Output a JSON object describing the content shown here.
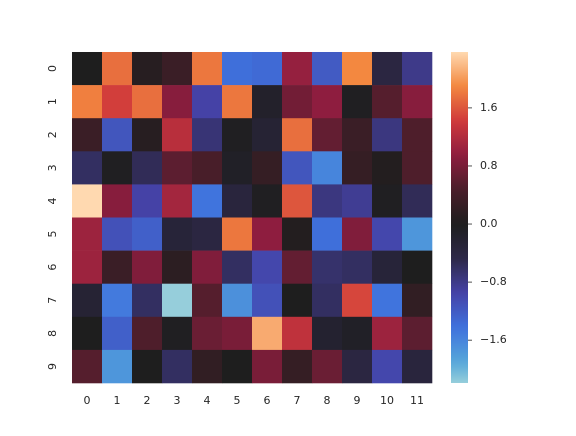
{
  "chart_data": {
    "type": "heatmap",
    "x_categories": [
      "0",
      "1",
      "2",
      "3",
      "4",
      "5",
      "6",
      "7",
      "8",
      "9",
      "10",
      "11"
    ],
    "y_categories": [
      "0",
      "1",
      "2",
      "3",
      "4",
      "5",
      "6",
      "7",
      "8",
      "9"
    ],
    "values": [
      [
        0.0,
        1.75,
        0.1,
        0.3,
        1.8,
        -1.4,
        -1.35,
        1.0,
        -1.2,
        1.9,
        -0.4,
        -0.8
      ],
      [
        1.85,
        1.45,
        1.75,
        0.9,
        -0.95,
        1.8,
        -0.15,
        0.75,
        0.95,
        -0.05,
        0.55,
        0.9
      ],
      [
        0.3,
        -1.15,
        0.1,
        1.25,
        -0.7,
        -0.05,
        -0.25,
        1.75,
        0.65,
        0.3,
        -0.75,
        0.5
      ],
      [
        -0.6,
        -0.05,
        -0.55,
        0.6,
        0.45,
        -0.1,
        0.25,
        -1.15,
        -1.6,
        0.25,
        0.05,
        0.5
      ],
      [
        2.37,
        0.9,
        -0.95,
        1.1,
        -1.45,
        -0.35,
        -0.05,
        1.6,
        -0.75,
        -0.85,
        -0.05,
        -0.55
      ],
      [
        1.05,
        -1.1,
        -1.25,
        -0.3,
        -0.4,
        1.8,
        0.95,
        0.05,
        -1.4,
        0.85,
        -1.0,
        -1.75
      ],
      [
        1.05,
        0.3,
        0.85,
        0.15,
        0.85,
        -0.6,
        -1.0,
        0.65,
        -0.65,
        -0.6,
        -0.3,
        0.0
      ],
      [
        -0.25,
        -1.5,
        -0.6,
        -2.19,
        0.55,
        -1.7,
        -1.1,
        0.0,
        -0.6,
        1.5,
        -1.45,
        0.2
      ],
      [
        0.0,
        -1.25,
        0.5,
        -0.05,
        0.7,
        0.8,
        2.1,
        1.3,
        -0.2,
        -0.1,
        1.05,
        0.6
      ],
      [
        0.55,
        -1.75,
        0.0,
        -0.6,
        0.2,
        0.0,
        0.8,
        0.25,
        0.7,
        -0.4,
        -1.0,
        -0.35
      ]
    ],
    "center": 0,
    "clim": [
      -2.19,
      2.37
    ],
    "cticks": [
      {
        "value": -1.6,
        "label": "−1.6"
      },
      {
        "value": -0.8,
        "label": "−0.8"
      },
      {
        "value": 0,
        "label": "0.0"
      },
      0.8,
      1.6
    ],
    "colormap": [
      "#bde7db",
      "#55a6da",
      "#3f71dd",
      "#4542a6",
      "#2d2848",
      "#1e1e1e",
      "#4a1e2a",
      "#8e1d3f",
      "#d0393b",
      "#f3873f",
      "#ffd9b0"
    ]
  }
}
